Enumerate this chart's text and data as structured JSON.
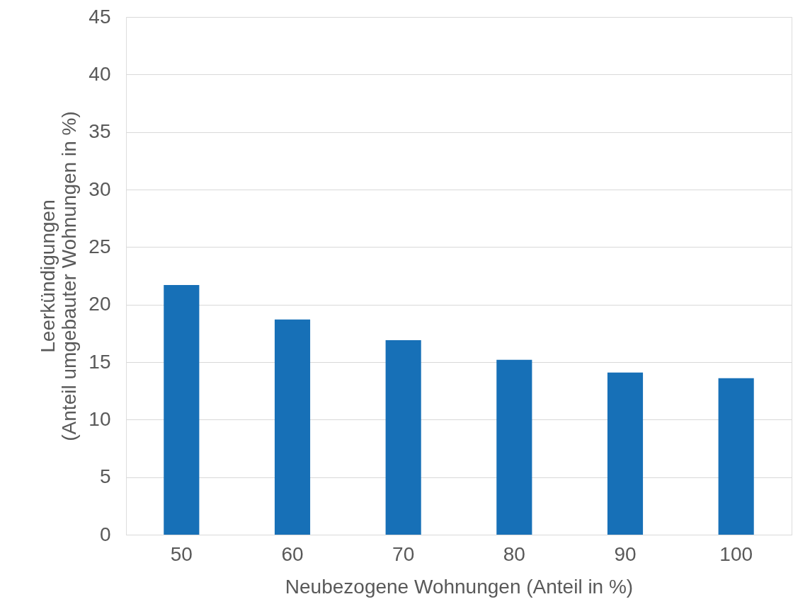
{
  "chart_data": {
    "type": "bar",
    "categories": [
      "50",
      "60",
      "70",
      "80",
      "90",
      "100"
    ],
    "values": [
      21.7,
      18.7,
      16.9,
      15.2,
      14.1,
      13.6
    ],
    "color": "#1770b7",
    "xlabel": "Neubezogene Wohnungen (Anteil in %)",
    "ylabel": "Leerkündigungen\n(Anteil umgebauter Wohnungen in %)",
    "ylim": [
      0,
      45
    ],
    "yticks": [
      0,
      5,
      10,
      15,
      20,
      25,
      30,
      35,
      40,
      45
    ],
    "grid": "y"
  }
}
